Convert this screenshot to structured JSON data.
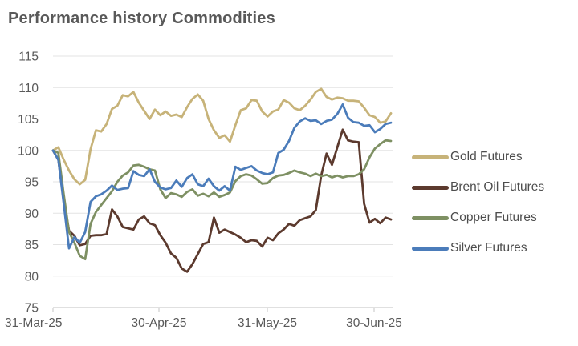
{
  "chart_data": {
    "type": "line",
    "title": "Performance history Commodities",
    "xlabel": "",
    "ylabel": "",
    "ylim": [
      75,
      115
    ],
    "grid": true,
    "legend_position": "right",
    "x_tick_labels": [
      "31-Mar-25",
      "30-Apr-25",
      "31-May-25",
      "30-Jun-25"
    ],
    "y_tick_labels": [
      75,
      80,
      85,
      90,
      95,
      100,
      105,
      110,
      115
    ],
    "axis_color": "#d6d6d6",
    "label_color": "#595959",
    "series": [
      {
        "name": "Gold Futures",
        "color": "#c7b379",
        "values": [
          100,
          100.5,
          98.5,
          96.8,
          95.4,
          94.6,
          95.3,
          100.2,
          103.2,
          103.0,
          104.2,
          106.6,
          107.1,
          108.8,
          108.6,
          109.3,
          107.6,
          106.3,
          105.0,
          106.5,
          105.6,
          106.2,
          105.5,
          105.7,
          105.3,
          106.9,
          108.2,
          108.9,
          107.9,
          105.0,
          103.2,
          102.0,
          102.4,
          101.4,
          104.0,
          106.4,
          106.7,
          108.0,
          107.9,
          106.2,
          105.4,
          106.2,
          106.5,
          108.0,
          107.6,
          106.7,
          106.4,
          107.1,
          108.1,
          109.3,
          109.8,
          108.5,
          108.1,
          108.4,
          108.3,
          107.9,
          107.9,
          107.8,
          106.8,
          105.6,
          105.3,
          104.4,
          104.6,
          105.9
        ]
      },
      {
        "name": "Brent Oil Futures",
        "color": "#5c3a2e",
        "values": [
          100,
          98.5,
          92.0,
          87.2,
          86.4,
          84.9,
          85.1,
          86.4,
          86.5,
          86.5,
          86.7,
          90.6,
          89.5,
          87.8,
          87.6,
          87.4,
          89.0,
          89.5,
          88.4,
          88.1,
          86.5,
          85.3,
          83.6,
          82.9,
          81.2,
          80.7,
          81.9,
          83.5,
          85.1,
          85.4,
          89.3,
          86.9,
          87.4,
          87.0,
          86.6,
          86.1,
          85.4,
          85.7,
          85.6,
          84.7,
          86.1,
          85.7,
          86.8,
          87.4,
          88.3,
          88.0,
          88.9,
          89.2,
          89.5,
          90.5,
          96.0,
          99.5,
          97.7,
          100.5,
          103.3,
          101.6,
          101.4,
          101.3,
          91.5,
          88.5,
          89.1,
          88.4,
          89.3,
          89.0
        ]
      },
      {
        "name": "Copper Futures",
        "color": "#7e9063",
        "values": [
          100,
          99.6,
          93.0,
          87.0,
          85.3,
          83.2,
          82.7,
          88.3,
          90.2,
          91.3,
          92.4,
          93.5,
          95.0,
          96.0,
          96.5,
          97.6,
          97.7,
          97.4,
          97.0,
          96.8,
          93.8,
          92.4,
          93.2,
          93.0,
          92.6,
          93.4,
          93.8,
          92.8,
          93.1,
          92.7,
          93.3,
          92.6,
          92.9,
          93.3,
          95.1,
          95.9,
          96.2,
          96.0,
          95.4,
          94.7,
          94.8,
          95.6,
          96.0,
          96.1,
          96.4,
          96.8,
          96.5,
          96.3,
          95.9,
          96.3,
          95.9,
          96.1,
          95.7,
          96.0,
          95.7,
          95.9,
          95.9,
          96.2,
          97.0,
          98.9,
          100.3,
          101.0,
          101.6,
          101.5
        ]
      },
      {
        "name": "Silver Futures",
        "color": "#4b7cba",
        "values": [
          100,
          98.5,
          91.5,
          84.4,
          86.2,
          85.3,
          87.0,
          91.8,
          92.7,
          93.0,
          93.6,
          94.4,
          93.7,
          93.9,
          94.0,
          96.7,
          96.1,
          95.9,
          97.0,
          95.0,
          94.1,
          93.8,
          94.0,
          95.2,
          94.2,
          95.6,
          96.2,
          94.6,
          94.3,
          95.5,
          94.3,
          93.6,
          94.3,
          93.6,
          97.4,
          96.9,
          97.2,
          97.5,
          96.8,
          96.4,
          96.2,
          96.5,
          99.6,
          100.1,
          101.5,
          103.6,
          104.6,
          105.1,
          104.7,
          104.8,
          104.2,
          104.7,
          104.9,
          105.8,
          107.3,
          105.2,
          104.5,
          104.4,
          103.9,
          104.0,
          102.9,
          103.4,
          104.2,
          104.4
        ]
      }
    ]
  }
}
